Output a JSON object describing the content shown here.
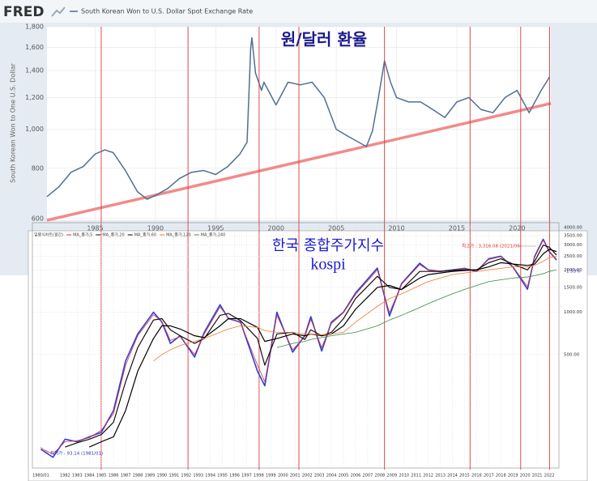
{
  "header": {
    "logo": "FRED"
  },
  "chart_data": [
    {
      "type": "line",
      "title": "원/달러 환율",
      "y_label": "South Korean Won to One U.S. Dollar",
      "log_y": true,
      "grid": true,
      "xlim": [
        1981,
        2022.8
      ],
      "xticks": [
        1985,
        1990,
        1995,
        2000,
        2005,
        2010,
        2015,
        2020
      ],
      "ylim": [
        594,
        1800
      ],
      "yticks": [
        600,
        800,
        {
          "value": 1000,
          "label": "1,000"
        },
        {
          "value": 1200,
          "label": "1,200"
        },
        {
          "value": 1400,
          "label": "1,400"
        },
        {
          "value": 1600,
          "label": "1,600"
        },
        {
          "value": 1800,
          "label": "1,800"
        }
      ],
      "x": [
        1981,
        1982,
        1983,
        1984,
        1985,
        1985.8,
        1986.5,
        1987.5,
        1988.5,
        1989.3,
        1990,
        1991,
        1992,
        1993,
        1994,
        1995,
        1996,
        1997,
        1997.6,
        1997.9,
        1998,
        1998.3,
        1998.8,
        1999,
        2000,
        2001,
        2002,
        2003,
        2004,
        2005,
        2006,
        2007.5,
        2008,
        2008.5,
        2009,
        2009.5,
        2010,
        2011,
        2012,
        2013,
        2014,
        2015,
        2016,
        2017,
        2018,
        2019,
        2020,
        2021,
        2022,
        2022.7
      ],
      "series": [
        {
          "name": "South Korean Won to U.S. Dollar Spot Exchange Rate",
          "color": "#4f6f95",
          "values": [
            680,
            720,
            782,
            808,
            868,
            889,
            875,
            790,
            700,
            670,
            685,
            712,
            755,
            782,
            790,
            772,
            808,
            868,
            929,
            1590,
            1690,
            1380,
            1250,
            1310,
            1150,
            1310,
            1290,
            1310,
            1200,
            1000,
            960,
            906,
            990,
            1200,
            1480,
            1310,
            1200,
            1170,
            1170,
            1120,
            1070,
            1170,
            1200,
            1120,
            1100,
            1200,
            1250,
            1100,
            1250,
            1350
          ]
        }
      ],
      "trendline": {
        "x": [
          1981,
          2022.8
        ],
        "values": [
          594,
          1160
        ],
        "color": "#f28a8a"
      },
      "vlines": {
        "x": [
          1985.5,
          1992.7,
          1998.6,
          2001.9,
          2009.0,
          2016.1,
          2020.3,
          2022.7
        ],
        "color": "#d83a3a"
      }
    },
    {
      "type": "line",
      "title": "한국 종합주가지수",
      "subtitle": "kospi",
      "log_y": true,
      "grid": true,
      "xlim": [
        1979.3,
        2022.8
      ],
      "xticks": [
        {
          "value": 1980,
          "label": "1980/01"
        },
        1982,
        1983,
        1984,
        1985,
        1986,
        1987,
        1988,
        1989,
        1990,
        1991,
        1992,
        1993,
        1994,
        1995,
        1996,
        1997,
        1998,
        1999,
        2000,
        2001,
        2002,
        2003,
        2004,
        2005,
        2006,
        2007,
        2008,
        2009,
        2010,
        2011,
        2012,
        2013,
        2014,
        2015,
        2016,
        2017,
        2018,
        2019,
        2020,
        2021,
        2022
      ],
      "ylim": [
        78,
        4330
      ],
      "yticks": [
        {
          "value": 500,
          "label": "500.00"
        },
        {
          "value": 1000,
          "label": "1000.00"
        },
        {
          "value": 1500,
          "label": "1500.00"
        },
        {
          "value": 2000,
          "label": "2000.00"
        },
        {
          "value": 2500,
          "label": "2500.00"
        },
        {
          "value": 3000,
          "label": "3000.00"
        },
        {
          "value": 3500,
          "label": "3500.00"
        },
        {
          "value": 4000,
          "label": "4000.00"
        }
      ],
      "annotations": [
        {
          "text": "최고가 : 3,316.08 (2021/06)",
          "color": "#e03030"
        },
        {
          "text": "최저가 : 93.14 (1981/01)",
          "color": "#3030c0"
        },
        {
          "text": "-1.53%",
          "color": "#3030c0"
        }
      ],
      "x": [
        1980,
        1981,
        1982,
        1983,
        1984,
        1985,
        1986,
        1987,
        1988,
        1989.3,
        1990,
        1990.7,
        1991.5,
        1992.7,
        1993.5,
        1994.8,
        1995.5,
        1996.5,
        1997.9,
        1998.5,
        1999.5,
        2000.8,
        2001.8,
        2002.3,
        2003.2,
        2004,
        2005,
        2006,
        2007.8,
        2008.8,
        2009.8,
        2011.3,
        2012,
        2013,
        2014,
        2015,
        2016,
        2017,
        2018,
        2019,
        2020.2,
        2020.8,
        2021.5,
        2022,
        2022.6
      ],
      "series": [
        {
          "name": "일봉식차트(월간)",
          "color": "#2a3fe0",
          "width": 1.6,
          "values": [
            106,
            93,
            125,
            120,
            130,
            140,
            200,
            450,
            700,
            1000,
            850,
            600,
            680,
            480,
            720,
            1130,
            900,
            850,
            380,
            300,
            1000,
            520,
            680,
            930,
            530,
            850,
            1000,
            1370,
            2060,
            940,
            1600,
            2230,
            2000,
            1950,
            2000,
            2050,
            1950,
            2400,
            2500,
            2100,
            1457,
            2500,
            3300,
            2700,
            2350
          ]
        },
        {
          "name": "MA_종가,5",
          "color": "#e03030",
          "width": 0.8,
          "values": [
            108,
            98,
            120,
            122,
            128,
            145,
            190,
            420,
            680,
            960,
            860,
            630,
            670,
            500,
            700,
            1090,
            910,
            840,
            420,
            320,
            950,
            540,
            670,
            890,
            560,
            830,
            990,
            1340,
            2000,
            990,
            1580,
            2180,
            1990,
            1960,
            1990,
            2040,
            1970,
            2370,
            2480,
            2110,
            1520,
            2460,
            3250,
            2720,
            2380
          ]
        },
        {
          "name": "MA_종가,20",
          "color": "#111111",
          "width": 1.2,
          "values": [
            null,
            null,
            110,
            118,
            125,
            135,
            165,
            320,
            560,
            880,
            900,
            750,
            680,
            600,
            650,
            950,
            980,
            870,
            650,
            420,
            700,
            720,
            640,
            750,
            680,
            720,
            900,
            1250,
            1800,
            1500,
            1450,
            1950,
            1950,
            1950,
            1980,
            2000,
            2000,
            2250,
            2400,
            2200,
            2000,
            2300,
            3000,
            2900,
            2550
          ]
        },
        {
          "name": "MA_종가,60",
          "color": "#000000",
          "width": 1.2,
          "values": [
            null,
            null,
            null,
            null,
            110,
            120,
            130,
            200,
            380,
            650,
            800,
            800,
            760,
            680,
            660,
            800,
            900,
            900,
            780,
            620,
            650,
            700,
            680,
            700,
            680,
            700,
            800,
            1050,
            1500,
            1550,
            1450,
            1750,
            1850,
            1900,
            1950,
            1980,
            2000,
            2100,
            2250,
            2200,
            2150,
            2200,
            2600,
            2800,
            2700
          ]
        },
        {
          "name": "MA_종가,120",
          "color": "#f07830",
          "width": 0.8,
          "values": [
            null,
            null,
            null,
            null,
            null,
            null,
            null,
            null,
            null,
            450,
            500,
            540,
            580,
            620,
            650,
            720,
            760,
            800,
            780,
            740,
            720,
            720,
            700,
            700,
            690,
            700,
            720,
            850,
            1100,
            1250,
            1350,
            1550,
            1650,
            1750,
            1850,
            1900,
            1950,
            2000,
            2050,
            2100,
            2100,
            2150,
            2300,
            2450,
            2500
          ]
        },
        {
          "name": "MA_종가,240",
          "color": "#3c8a3c",
          "width": 0.8,
          "values": [
            null,
            null,
            null,
            null,
            null,
            null,
            null,
            null,
            null,
            null,
            null,
            null,
            null,
            null,
            null,
            null,
            null,
            null,
            null,
            null,
            560,
            600,
            620,
            640,
            660,
            680,
            700,
            720,
            800,
            880,
            950,
            1080,
            1150,
            1250,
            1350,
            1450,
            1550,
            1650,
            1700,
            1750,
            1780,
            1820,
            1880,
            1950,
            2000
          ]
        }
      ]
    }
  ]
}
